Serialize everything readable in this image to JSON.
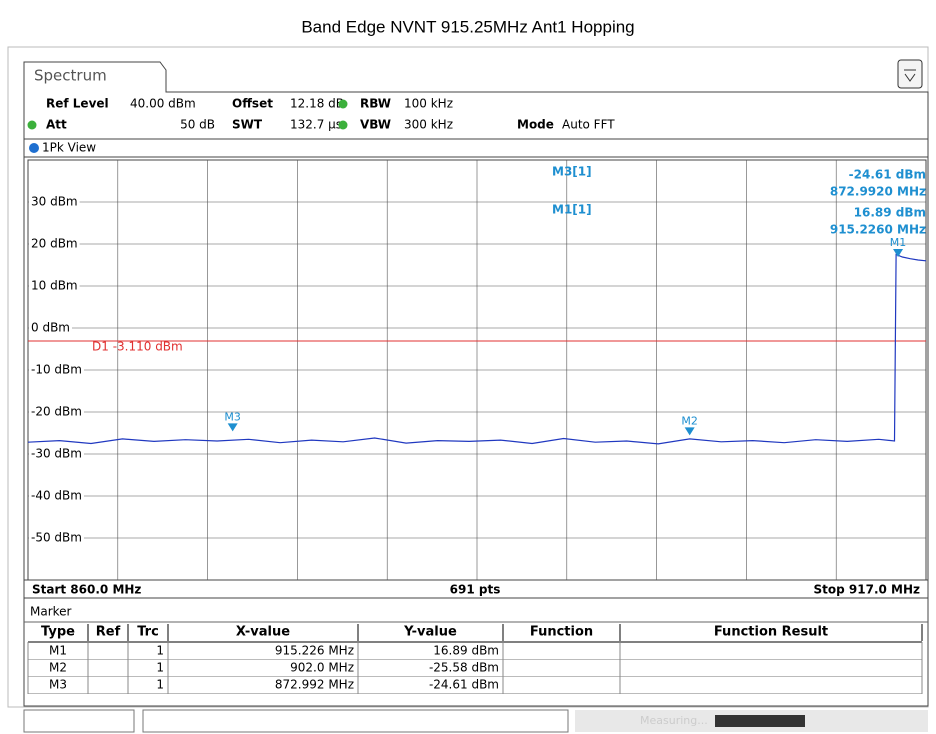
{
  "window_title": "Band Edge NVNT    915.25MHz Ant1 Hopping",
  "tab": "Spectrum",
  "settings": {
    "row1": [
      {
        "label": "Ref Level",
        "value": "40.00 dBm"
      },
      {
        "label": "Offset",
        "value": "12.18 dB"
      },
      {
        "label": "RBW",
        "value": "100 kHz"
      }
    ],
    "row2": [
      {
        "label": "Att",
        "value": "50 dB"
      },
      {
        "label": "SWT",
        "value": "132.7 µs"
      },
      {
        "label": "VBW",
        "value": "300 kHz"
      },
      {
        "label": "Mode",
        "value": "Auto FFT"
      }
    ]
  },
  "view_label": "1Pk View",
  "chart_data": {
    "type": "line",
    "xlim": [
      860,
      917
    ],
    "ylim": [
      -60,
      40
    ],
    "yticks": [
      {
        "value": 30,
        "label": "30 dBm"
      },
      {
        "value": 20,
        "label": "20 dBm"
      },
      {
        "value": 10,
        "label": "10 dBm"
      },
      {
        "value": 0,
        "label": "0 dBm"
      },
      {
        "value": -10,
        "label": "-10 dBm"
      },
      {
        "value": -20,
        "label": "-20 dBm"
      },
      {
        "value": -30,
        "label": "-30 dBm"
      },
      {
        "value": -40,
        "label": "-40 dBm"
      },
      {
        "value": -50,
        "label": "-50 dBm"
      }
    ],
    "grid": true,
    "series": [
      {
        "name": "1Pk",
        "color": "#2038c0",
        "x": [
          860,
          862,
          864,
          866,
          868,
          870,
          872,
          874,
          876,
          878,
          880,
          882,
          884,
          886,
          888,
          890,
          892,
          894,
          896,
          898,
          900,
          902,
          904,
          906,
          908,
          910,
          912,
          914,
          915.0,
          915.1,
          915.5,
          916.0,
          916.5,
          917.0
        ],
        "values": [
          -27.2,
          -26.8,
          -27.5,
          -26.4,
          -27.0,
          -26.6,
          -26.9,
          -26.5,
          -27.3,
          -26.7,
          -27.1,
          -26.2,
          -27.4,
          -26.8,
          -27.0,
          -26.7,
          -27.5,
          -26.3,
          -27.2,
          -26.9,
          -27.6,
          -26.4,
          -27.1,
          -26.8,
          -27.3,
          -26.6,
          -27.0,
          -26.5,
          -26.9,
          17.5,
          16.9,
          16.5,
          16.2,
          16.0
        ]
      }
    ],
    "threshold": {
      "label": "D1 -3.110 dBm",
      "value": -3.11,
      "color": "#e03030"
    },
    "markers": [
      {
        "name": "M1",
        "x": 915.226,
        "y": 16.89
      },
      {
        "name": "M2",
        "x": 902.0,
        "y": -25.58
      },
      {
        "name": "M3",
        "x": 872.992,
        "y": -24.61
      }
    ],
    "marker_color": "#1e8fd0",
    "readouts": [
      {
        "name": "M3[1]",
        "level": "-24.61 dBm",
        "freq": "872.9920 MHz"
      },
      {
        "name": "M1[1]",
        "level": "16.89 dBm",
        "freq": "915.2260 MHz"
      }
    ],
    "footer": {
      "start": "Start 860.0 MHz",
      "points": "691 pts",
      "stop": "Stop 917.0 MHz"
    }
  },
  "table": {
    "title": "Marker",
    "header": [
      "Type",
      "Ref",
      "Trc",
      "X-value",
      "Y-value",
      "Function",
      "Function Result"
    ],
    "rows": [
      [
        "M1",
        "",
        "1",
        "915.226 MHz",
        "16.89 dBm",
        "",
        ""
      ],
      [
        "M2",
        "",
        "1",
        "902.0 MHz",
        "-25.58 dBm",
        "",
        ""
      ],
      [
        "M3",
        "",
        "1",
        "872.992 MHz",
        "-24.61 dBm",
        "",
        ""
      ]
    ]
  },
  "status": "Measuring..."
}
